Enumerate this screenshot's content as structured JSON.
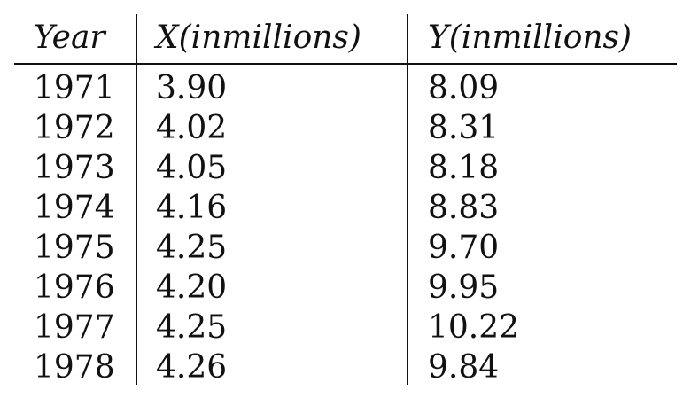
{
  "table": {
    "headers": [
      "Year",
      "X(inmillions)",
      "Y(inmillions)"
    ],
    "rows": [
      [
        "1971",
        "3.90",
        "8.09"
      ],
      [
        "1972",
        "4.02",
        "8.31"
      ],
      [
        "1973",
        "4.05",
        "8.18"
      ],
      [
        "1974",
        "4.16",
        "8.83"
      ],
      [
        "1975",
        "4.25",
        "9.70"
      ],
      [
        "1976",
        "4.20",
        "9.95"
      ],
      [
        "1977",
        "4.25",
        "10.22"
      ],
      [
        "1978",
        "4.26",
        "9.84"
      ]
    ]
  }
}
